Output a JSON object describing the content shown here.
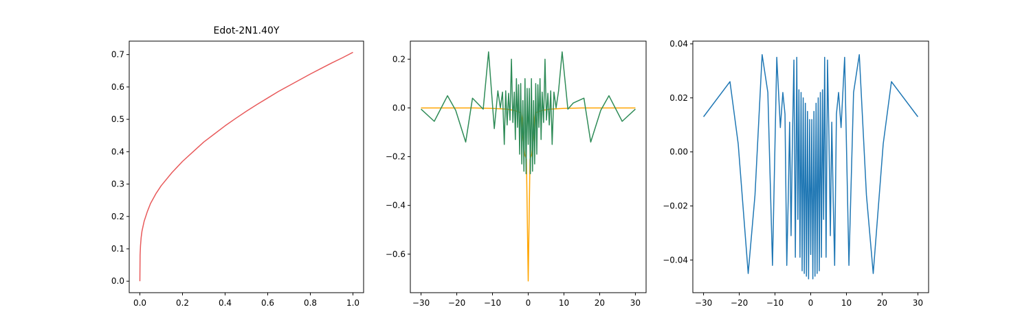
{
  "chart_data": [
    {
      "type": "line",
      "title": "Edot-2N1.40Y",
      "xlim": [
        -0.05,
        1.05
      ],
      "ylim": [
        -0.0355,
        0.7416
      ],
      "xticks": [
        0.0,
        0.2,
        0.4,
        0.6,
        0.8,
        1.0
      ],
      "xtick_labels": [
        "0.0",
        "0.2",
        "0.4",
        "0.6",
        "0.8",
        "1.0"
      ],
      "yticks": [
        0.0,
        0.1,
        0.2,
        0.3,
        0.4,
        0.5,
        0.6,
        0.7
      ],
      "ytick_labels": [
        "0.0",
        "0.1",
        "0.2",
        "0.3",
        "0.4",
        "0.5",
        "0.6",
        "0.7"
      ],
      "series": [
        {
          "color": "#e8595a",
          "x": [
            0,
            0.001,
            0.003,
            0.006,
            0.01,
            0.02,
            0.035,
            0.05,
            0.075,
            0.1,
            0.15,
            0.2,
            0.25,
            0.3,
            0.35,
            0.4,
            0.45,
            0.5,
            0.55,
            0.6,
            0.65,
            0.7,
            0.75,
            0.8,
            0.85,
            0.9,
            0.95,
            1.0
          ],
          "y": [
            0.0,
            0.08,
            0.11,
            0.135,
            0.155,
            0.185,
            0.215,
            0.24,
            0.27,
            0.295,
            0.335,
            0.37,
            0.4,
            0.43,
            0.455,
            0.48,
            0.503,
            0.525,
            0.546,
            0.566,
            0.586,
            0.604,
            0.622,
            0.64,
            0.657,
            0.674,
            0.69,
            0.707
          ]
        }
      ]
    },
    {
      "type": "line",
      "xlim": [
        -33.0,
        33.0
      ],
      "ylim": [
        -0.758,
        0.274
      ],
      "xticks": [
        -30,
        -20,
        -10,
        0,
        10,
        20,
        30
      ],
      "xtick_labels": [
        "−30",
        "−20",
        "−10",
        "0",
        "10",
        "20",
        "30"
      ],
      "yticks": [
        -0.6,
        -0.4,
        -0.2,
        0.0,
        0.2
      ],
      "ytick_labels": [
        "−0.6",
        "−0.4",
        "−0.2",
        "0.0",
        "0.2"
      ],
      "series": [
        {
          "color": "#ffa500",
          "x": [
            -30,
            -25,
            -20,
            -15,
            -10,
            -6,
            -4,
            -2,
            -1,
            -0.5,
            0,
            0.5,
            1,
            2,
            4,
            6,
            10,
            15,
            20,
            25,
            30
          ],
          "y": [
            0.0,
            0.0,
            0.0,
            0.0,
            -0.002,
            -0.005,
            -0.01,
            -0.02,
            -0.19,
            -0.21,
            -0.71,
            -0.21,
            -0.19,
            -0.02,
            -0.01,
            -0.005,
            -0.002,
            0.0,
            0.0,
            0.0,
            0.0
          ]
        },
        {
          "color": "#2e8b57",
          "x": [
            -30,
            -26.3,
            -22.6,
            -20.3,
            -17.5,
            -15.6,
            -12.6,
            -11.1,
            -9.5,
            -8.5,
            -7.8,
            -7.2,
            -6.7,
            -6.3,
            -5.9,
            -5.5,
            -5.1,
            -4.7,
            -4.3,
            -3.9,
            -3.6,
            -3.3,
            -3.0,
            -2.7,
            -2.4,
            -2.1,
            -1.8,
            -1.5,
            -1.2,
            -0.9,
            -0.6,
            -0.3,
            0,
            0.3,
            0.6,
            0.9,
            1.2,
            1.5,
            1.8,
            2.1,
            2.4,
            2.7,
            3.0,
            3.3,
            3.6,
            3.9,
            4.3,
            4.7,
            5.1,
            5.5,
            5.9,
            6.3,
            6.7,
            7.2,
            7.8,
            8.5,
            9.5,
            11.1,
            12.6,
            15.6,
            17.5,
            20.3,
            22.6,
            26.3,
            30
          ],
          "y": [
            -0.005,
            -0.055,
            0.05,
            -0.01,
            -0.14,
            0.04,
            -0.005,
            0.23,
            -0.085,
            0.07,
            0.0,
            0.065,
            -0.15,
            0.07,
            -0.07,
            0.06,
            -0.05,
            0.2,
            -0.06,
            0.065,
            -0.13,
            0.12,
            -0.08,
            0.095,
            -0.19,
            0.1,
            -0.23,
            0.03,
            -0.26,
            0.12,
            -0.27,
            0.08,
            -0.15,
            0.08,
            -0.27,
            0.12,
            -0.26,
            0.03,
            -0.23,
            0.1,
            -0.19,
            0.095,
            -0.08,
            0.12,
            -0.13,
            0.065,
            -0.06,
            0.2,
            -0.05,
            0.06,
            -0.07,
            0.07,
            -0.15,
            0.065,
            0.0,
            0.07,
            0.23,
            -0.005,
            0.02,
            0.04,
            -0.14,
            -0.01,
            0.05,
            -0.055,
            -0.005
          ]
        }
      ]
    },
    {
      "type": "line",
      "xlim": [
        -33.0,
        33.0
      ],
      "ylim": [
        -0.0521,
        0.041
      ],
      "xticks": [
        -30,
        -20,
        -10,
        0,
        10,
        20,
        30
      ],
      "xtick_labels": [
        "−30",
        "−20",
        "−10",
        "0",
        "10",
        "20",
        "30"
      ],
      "yticks": [
        -0.04,
        -0.02,
        0.0,
        0.02,
        0.04
      ],
      "ytick_labels": [
        "−0.04",
        "−0.02",
        "0.00",
        "0.02",
        "0.04"
      ],
      "series": [
        {
          "color": "#1f77b4",
          "x": [
            -30,
            -22.6,
            -20.3,
            -17.5,
            -15.6,
            -13.6,
            -12.0,
            -10.7,
            -9.5,
            -8.5,
            -7.8,
            -7.2,
            -6.7,
            -6.3,
            -5.9,
            -5.5,
            -5.1,
            -4.7,
            -4.3,
            -3.9,
            -3.6,
            -3.3,
            -3.0,
            -2.7,
            -2.4,
            -2.1,
            -1.8,
            -1.5,
            -1.2,
            -0.9,
            -0.6,
            -0.3,
            0,
            0.3,
            0.6,
            0.9,
            1.2,
            1.5,
            1.8,
            2.1,
            2.4,
            2.7,
            3.0,
            3.3,
            3.6,
            3.9,
            4.3,
            4.7,
            5.1,
            5.5,
            5.9,
            6.3,
            6.7,
            7.2,
            7.8,
            8.5,
            9.5,
            10.7,
            12.0,
            13.6,
            15.6,
            17.5,
            20.3,
            22.6,
            30
          ],
          "y": [
            0.013,
            0.026,
            0.003,
            -0.045,
            -0.016,
            0.036,
            0.022,
            -0.042,
            0.035,
            0.009,
            0.022,
            0.014,
            -0.042,
            -0.018,
            0.011,
            -0.031,
            0.006,
            0.034,
            -0.039,
            0.035,
            -0.025,
            0.023,
            -0.039,
            0.022,
            -0.044,
            0.02,
            -0.045,
            0.018,
            -0.046,
            0.015,
            -0.047,
            0.012,
            -0.038,
            0.012,
            -0.047,
            0.015,
            -0.046,
            0.018,
            -0.045,
            0.02,
            -0.044,
            0.022,
            -0.039,
            0.023,
            -0.025,
            0.035,
            -0.039,
            0.034,
            0.006,
            -0.031,
            0.011,
            -0.018,
            -0.042,
            0.014,
            0.022,
            0.009,
            0.035,
            -0.042,
            0.022,
            0.036,
            -0.016,
            -0.045,
            0.003,
            0.026,
            0.013
          ]
        }
      ]
    }
  ]
}
